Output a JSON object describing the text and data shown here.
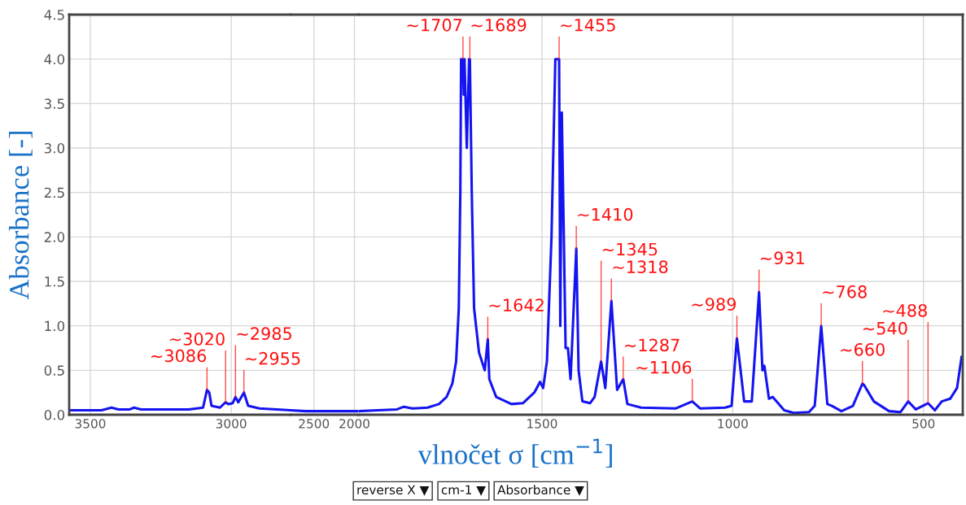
{
  "chart_data": [
    {
      "type": "line",
      "ylabel": "Absorbance [-]",
      "xlim": [
        3575,
        2790
      ],
      "xticks": [
        3500,
        3000
      ],
      "ylim": [
        0,
        4.5
      ],
      "yticks": [
        {
          "value": 0,
          "label": "0.0"
        },
        0.5,
        {
          "value": 1,
          "label": "1.0"
        },
        1.5,
        {
          "value": 2,
          "label": "2.0"
        },
        2.5,
        {
          "value": 3,
          "label": "3.0"
        },
        3.5,
        {
          "value": 4,
          "label": "4.0"
        },
        4.5
      ],
      "grid": true,
      "series": [
        {
          "color": "#1414f0",
          "x": [
            3575,
            3460,
            3425,
            3400,
            3360,
            3345,
            3320,
            3150,
            3100,
            3086,
            3078,
            3070,
            3040,
            3020,
            3010,
            2995,
            2985,
            2975,
            2955,
            2940,
            2900,
            2790
          ],
          "values": [
            0.05,
            0.05,
            0.08,
            0.06,
            0.06,
            0.08,
            0.06,
            0.06,
            0.08,
            0.28,
            0.25,
            0.1,
            0.08,
            0.14,
            0.12,
            0.13,
            0.2,
            0.14,
            0.25,
            0.1,
            0.07,
            0.05
          ]
        }
      ],
      "annotations": [
        {
          "text": "~3086",
          "x": 3086,
          "y": 0.28
        },
        {
          "text": "~3020",
          "x": 3020,
          "y": 0.14
        },
        {
          "text": "~2985",
          "x": 2985,
          "y": 0.2
        },
        {
          "text": "~2955",
          "x": 2955,
          "y": 0.25
        }
      ]
    },
    {
      "type": "line",
      "xlim": [
        2790,
        1950
      ],
      "xticks": [
        2500,
        2000
      ],
      "ylim": [
        0,
        4.5
      ],
      "yticks": [
        0,
        0.5,
        1,
        1.5,
        2,
        2.5,
        3,
        3.5,
        4,
        4.5
      ],
      "grid": true,
      "tick_labels": "x",
      "series": [
        {
          "color": "#1414f0",
          "x": [
            2790,
            2600,
            2200,
            1950
          ],
          "values": [
            0.05,
            0.04,
            0.04,
            0.04
          ]
        }
      ]
    },
    {
      "type": "line",
      "xlabel": "vlnočet σ [cm$^{−1}$]",
      "xlim": [
        1981,
        397
      ],
      "xticks": [
        1500,
        1000,
        500
      ],
      "ylim": [
        0,
        4.5
      ],
      "yticks": [
        0,
        0.5,
        1,
        1.5,
        2,
        2.5,
        3,
        3.5,
        4,
        4.5
      ],
      "grid": true,
      "tick_labels": "x",
      "series": [
        {
          "color": "#1414f0",
          "x": [
            1981,
            1930,
            1880,
            1862,
            1840,
            1800,
            1770,
            1750,
            1735,
            1725,
            1718,
            1714,
            1712,
            1707,
            1705,
            1703,
            1697,
            1691,
            1689,
            1684,
            1678,
            1665,
            1650,
            1642,
            1638,
            1620,
            1580,
            1550,
            1520,
            1505,
            1497,
            1487,
            1475,
            1465,
            1455,
            1452,
            1448,
            1438,
            1432,
            1425,
            1410,
            1404,
            1394,
            1374,
            1362,
            1345,
            1334,
            1318,
            1303,
            1287,
            1276,
            1240,
            1150,
            1106,
            1085,
            1020,
            1003,
            989,
            970,
            950,
            931,
            922,
            917,
            905,
            895,
            865,
            840,
            800,
            785,
            768,
            752,
            740,
            715,
            685,
            660,
            655,
            630,
            590,
            560,
            540,
            520,
            488,
            470,
            452,
            430,
            412,
            400
          ],
          "values": [
            0.04,
            0.05,
            0.06,
            0.09,
            0.07,
            0.08,
            0.12,
            0.2,
            0.35,
            0.6,
            1.2,
            2.5,
            4.0,
            4.0,
            3.6,
            4.0,
            3.0,
            4.0,
            4.0,
            2.5,
            1.2,
            0.7,
            0.5,
            0.85,
            0.4,
            0.2,
            0.12,
            0.13,
            0.25,
            0.37,
            0.3,
            0.6,
            2.0,
            4.0,
            4.0,
            1.0,
            3.4,
            0.75,
            0.75,
            0.4,
            1.87,
            0.5,
            0.15,
            0.13,
            0.2,
            0.6,
            0.3,
            1.28,
            0.28,
            0.4,
            0.12,
            0.08,
            0.07,
            0.15,
            0.07,
            0.08,
            0.1,
            0.86,
            0.15,
            0.15,
            1.38,
            0.5,
            0.55,
            0.18,
            0.2,
            0.05,
            0.02,
            0.03,
            0.1,
            1.0,
            0.12,
            0.1,
            0.04,
            0.1,
            0.35,
            0.33,
            0.15,
            0.04,
            0.03,
            0.15,
            0.06,
            0.13,
            0.05,
            0.15,
            0.18,
            0.3,
            0.65
          ]
        }
      ],
      "annotations": [
        {
          "text": "~1707",
          "x": 1707,
          "y": 4.0
        },
        {
          "text": "~1689",
          "x": 1689,
          "y": 4.0
        },
        {
          "text": "~1642",
          "x": 1642,
          "y": 0.85
        },
        {
          "text": "~1455",
          "x": 1455,
          "y": 4.0
        },
        {
          "text": "~1410",
          "x": 1410,
          "y": 1.87
        },
        {
          "text": "~1345",
          "x": 1345,
          "y": 0.6
        },
        {
          "text": "~1318",
          "x": 1318,
          "y": 1.28
        },
        {
          "text": "~1287",
          "x": 1287,
          "y": 0.4
        },
        {
          "text": "~1106",
          "x": 1106,
          "y": 0.15
        },
        {
          "text": "~989",
          "x": 989,
          "y": 0.86
        },
        {
          "text": "~931",
          "x": 931,
          "y": 1.38
        },
        {
          "text": "~768",
          "x": 768,
          "y": 1.0
        },
        {
          "text": "~660",
          "x": 660,
          "y": 0.35
        },
        {
          "text": "~540",
          "x": 540,
          "y": 0.15
        },
        {
          "text": "~488",
          "x": 488,
          "y": 0.13
        },
        "reverse X ▼",
        "cm-1 ▼",
        "Absorbance ▼"
      ]
    }
  ]
}
